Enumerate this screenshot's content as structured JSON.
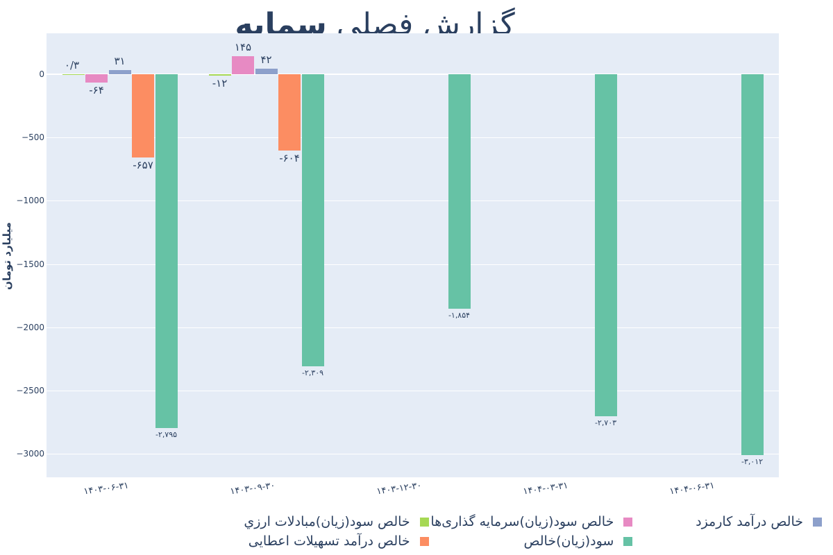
{
  "title": {
    "prefix": "گزارش فصلی",
    "name": "سمایه"
  },
  "chart_data": {
    "type": "bar",
    "title": "گزارش فصلی سمایه",
    "xlabel": "",
    "ylabel": "میلیارد تومان",
    "ylim": [
      -3200,
      320
    ],
    "yticks": [
      "0",
      "−500",
      "−1000",
      "−1500",
      "−2000",
      "−2500",
      "−3000"
    ],
    "categories": [
      "۱۴۰۳-۰۶-۳۱",
      "۱۴۰۳-۰۹-۳۰",
      "۱۴۰۳-۱۲-۳۰",
      "۱۴۰۴-۰۳-۳۱",
      "۱۴۰۴-۰۶-۳۱"
    ],
    "series": [
      {
        "name": "خالص سود(زیان)مبادلات ارزي",
        "color": "#a6d854",
        "values": [
          0.3,
          -12,
          null,
          null,
          null
        ],
        "labels": [
          "۰/۳",
          "-۱۲",
          "",
          "",
          ""
        ]
      },
      {
        "name": "خالص سود(زیان)سرمایه گذاری‌ها",
        "color": "#e78ac3",
        "values": [
          -64,
          145,
          null,
          null,
          null
        ],
        "labels": [
          "-۶۴",
          "۱۴۵",
          "",
          "",
          ""
        ]
      },
      {
        "name": "خالص درآمد کارمزد",
        "color": "#8da0cb",
        "values": [
          31,
          42,
          null,
          null,
          null
        ],
        "labels": [
          "۳۱",
          "۴۲",
          "",
          "",
          ""
        ]
      },
      {
        "name": "خالص درآمد تسهیلات اعطایی",
        "color": "#fc8d62",
        "values": [
          -657,
          -604,
          null,
          null,
          null
        ],
        "labels": [
          "-۶۵۷",
          "-۶۰۴",
          "",
          "",
          ""
        ]
      },
      {
        "name": "سود(زیان)خالص",
        "color": "#66c2a5",
        "values": [
          -2795,
          -2309,
          -1854,
          -2703,
          -3012
        ],
        "labels": [
          "-۲,۷۹۵",
          "-۲,۳۰۹",
          "-۱,۸۵۴",
          "-۲,۷۰۳",
          "-۳,۰۱۲"
        ]
      }
    ],
    "grid": true,
    "legend_position": "bottom"
  },
  "legend": {
    "items": [
      {
        "label": "خالص درآمد کارمزد",
        "color": "#8da0cb"
      },
      {
        "label": "خالص سود(زیان)سرمایه گذاری‌ها",
        "color": "#e78ac3"
      },
      {
        "label": "خالص سود(زیان)مبادلات ارزي",
        "color": "#a6d854"
      },
      {
        "label": "سود(زیان)خالص",
        "color": "#66c2a5"
      },
      {
        "label": "خالص درآمد تسهیلات اعطایی",
        "color": "#fc8d62"
      }
    ]
  }
}
